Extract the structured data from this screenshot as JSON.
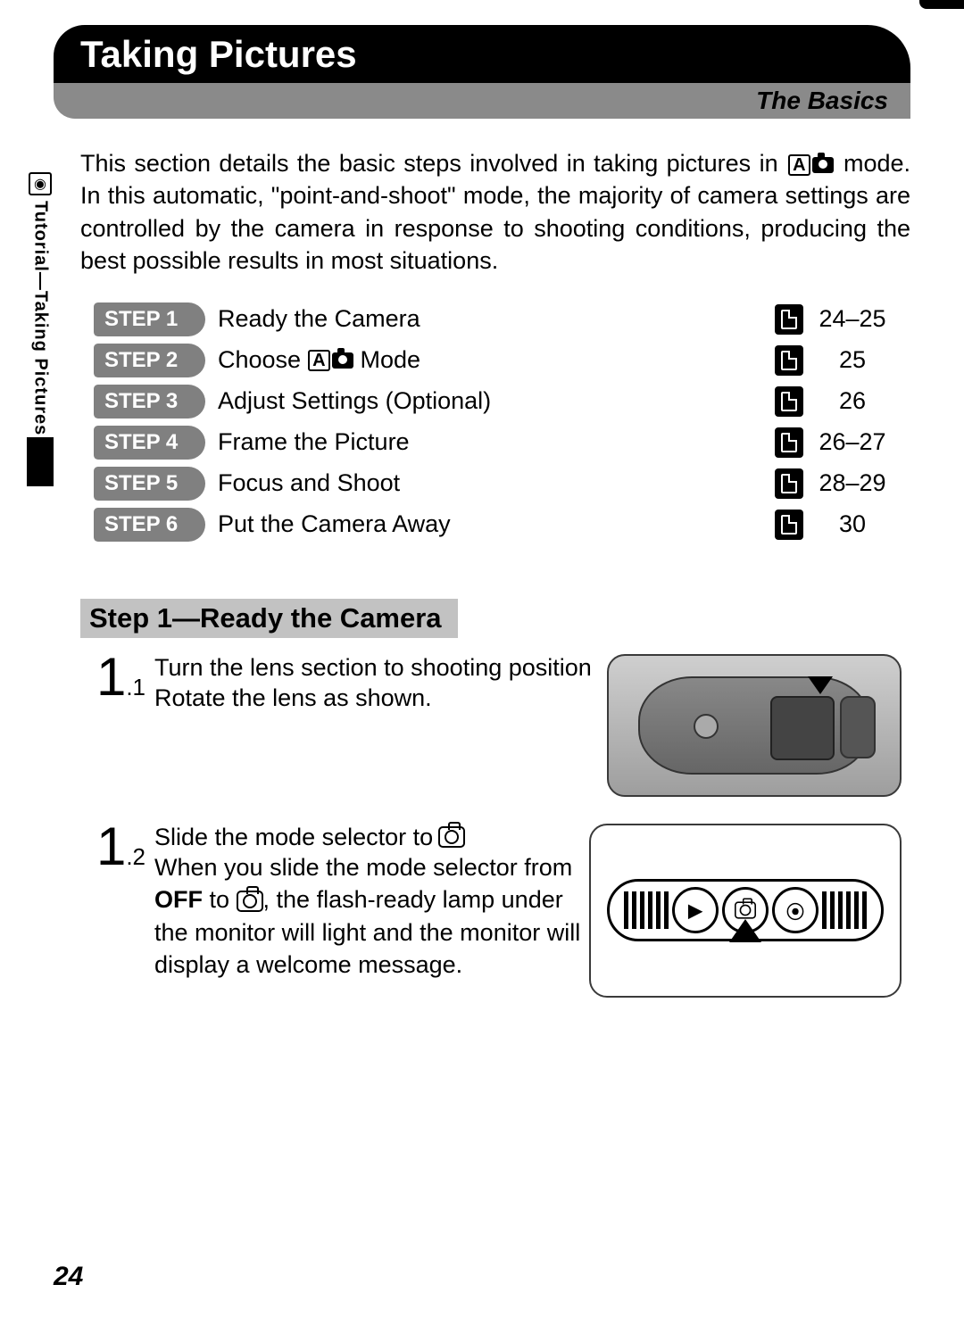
{
  "header": {
    "title": "Taking Pictures",
    "subtitle": "The Basics"
  },
  "side_label": "Tutorial—Taking Pictures",
  "intro": {
    "part1": "This section details the basic steps involved in taking pictures in ",
    "part2": " mode.  In this automatic, \"point-and-shoot\" mode, the majority of camera settings are controlled by the camera in response to shooting conditions, producing the best possible results in most situations."
  },
  "steps": [
    {
      "chip": "STEP 1",
      "title": "Ready the Camera",
      "pages": "24–25",
      "has_mode_icon": false
    },
    {
      "chip": "STEP 2",
      "title_pre": "Choose ",
      "title_post": " Mode",
      "pages": "25",
      "has_mode_icon": true
    },
    {
      "chip": "STEP 3",
      "title": "Adjust Settings (Optional)",
      "pages": "26",
      "has_mode_icon": false
    },
    {
      "chip": "STEP 4",
      "title": "Frame the Picture",
      "pages": "26–27",
      "has_mode_icon": false
    },
    {
      "chip": "STEP 5",
      "title": "Focus and Shoot",
      "pages": "28–29",
      "has_mode_icon": false
    },
    {
      "chip": "STEP 6",
      "title": "Put the Camera Away",
      "pages": "30",
      "has_mode_icon": false
    }
  ],
  "section_heading": "Step 1—Ready the Camera",
  "sub1": {
    "num": "1",
    "dec": ".1",
    "title": "Turn the lens section to shooting position",
    "desc": "Rotate the lens as shown."
  },
  "sub2": {
    "num": "1",
    "dec": ".2",
    "title": "Slide the mode selector to ",
    "desc_pre": "When you slide the mode selector from ",
    "off": "OFF",
    "desc_mid": " to ",
    "desc_post": ", the flash-ready lamp under the moni­tor will light and the monitor will display a welcome message."
  },
  "page_number": "24"
}
